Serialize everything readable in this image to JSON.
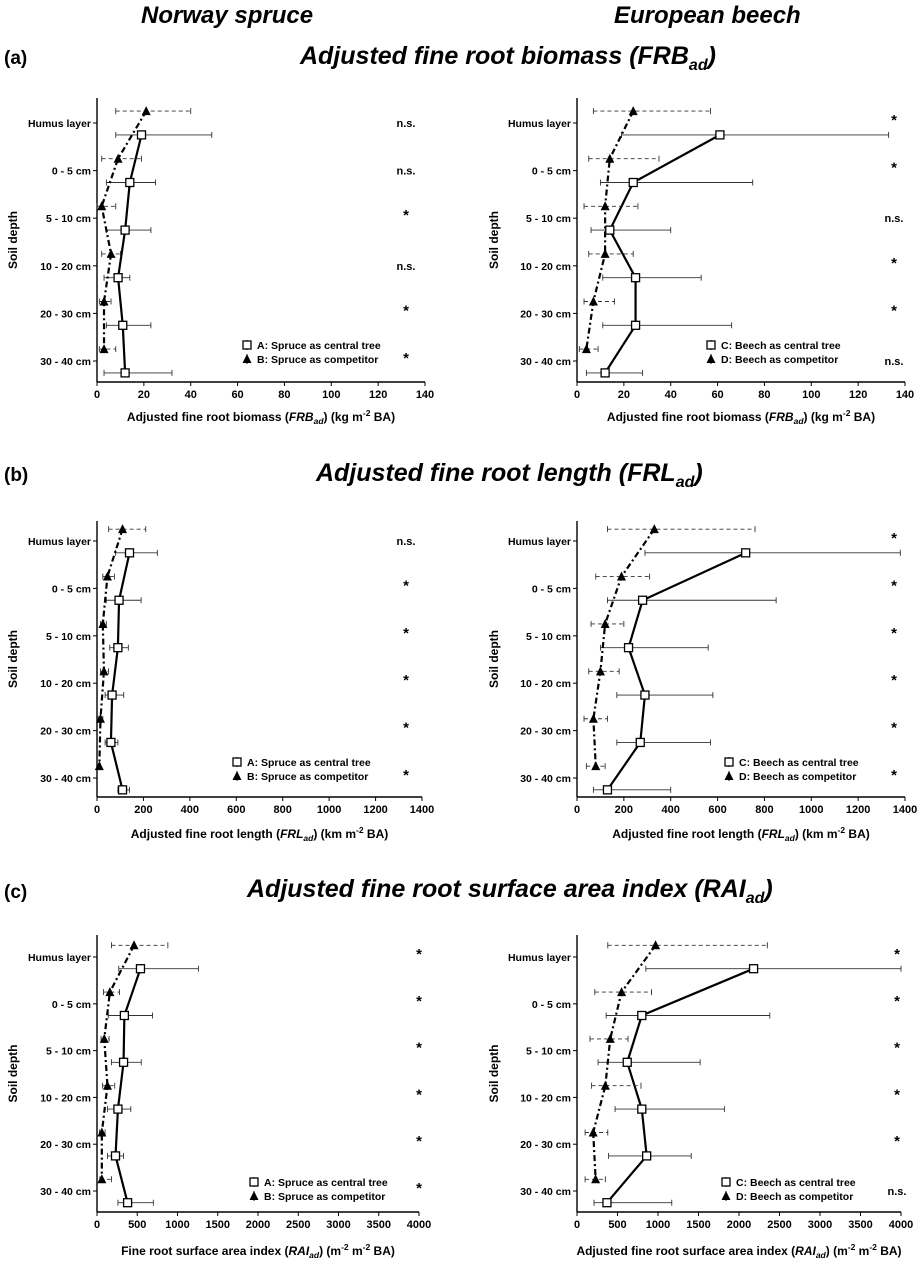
{
  "columns": {
    "left": "Norway spruce",
    "right": "European beech"
  },
  "sections": [
    {
      "tag": "(a)",
      "title": "Adjusted fine root biomass (",
      "title_sym": "FRB",
      "title_sub": "ad",
      "title_end": ")"
    },
    {
      "tag": "(b)",
      "title": "Adjusted fine root length (",
      "title_sym": "FRL",
      "title_sub": "ad",
      "title_end": ")"
    },
    {
      "tag": "(c)",
      "title": "Adjusted fine root surface area index (",
      "title_sym": "RAI",
      "title_sub": "ad",
      "title_end": ")"
    }
  ],
  "chart_data": [
    {
      "type": "line",
      "panel": "a-spruce",
      "xlabel": "Adjusted fine root biomass (FRBad) (kg m-2 BA)",
      "xlabel_parts": [
        "Adjusted fine root biomass (",
        "FRB",
        "ad",
        ") (kg m",
        "-2",
        " BA)"
      ],
      "ylabel": "Soil depth",
      "categories": [
        "Humus layer",
        "0 - 5 cm",
        "5 - 10 cm",
        "10 - 20 cm",
        "20 - 30 cm",
        "30 - 40 cm"
      ],
      "xlim": [
        0,
        140
      ],
      "xticks": [
        0,
        20,
        40,
        60,
        80,
        100,
        120,
        140
      ],
      "significance": [
        "n.s.",
        "n.s.",
        "*",
        "n.s.",
        "*",
        "*"
      ],
      "series": [
        {
          "name": "A: Spruce as central tree",
          "marker": "square",
          "style": "solid",
          "values": [
            19,
            14,
            12,
            9,
            11,
            12
          ],
          "err_low": [
            11,
            10,
            8,
            6,
            7,
            9
          ],
          "err_high": [
            30,
            11,
            11,
            5,
            12,
            20
          ]
        },
        {
          "name": "B: Spruce as competitor",
          "marker": "triangle",
          "style": "dashed",
          "values": [
            21,
            9,
            2,
            6,
            3,
            3
          ],
          "err_low": [
            13,
            7,
            2,
            4,
            2,
            2
          ],
          "err_high": [
            19,
            10,
            6,
            4,
            3,
            5
          ]
        }
      ]
    },
    {
      "type": "line",
      "panel": "a-beech",
      "xlabel": "Adjusted fine root biomass (FRBad) (kg m-2 BA)",
      "xlabel_parts": [
        "Adjusted fine root biomass (",
        "FRB",
        "ad",
        ") (kg m",
        "-2",
        " BA)"
      ],
      "ylabel": "Soil depth",
      "categories": [
        "Humus layer",
        "0 - 5 cm",
        "5 - 10 cm",
        "10 - 20 cm",
        "20 - 30 cm",
        "30 - 40 cm"
      ],
      "xlim": [
        0,
        140
      ],
      "xticks": [
        0,
        20,
        40,
        60,
        80,
        100,
        120,
        140
      ],
      "significance": [
        "*",
        "*",
        "n.s.",
        "*",
        "*",
        "n.s."
      ],
      "series": [
        {
          "name": "C: Beech as central tree",
          "marker": "square",
          "style": "solid",
          "values": [
            61,
            24,
            14,
            25,
            25,
            12
          ],
          "err_low": [
            42,
            14,
            8,
            14,
            14,
            8
          ],
          "err_high": [
            72,
            51,
            26,
            28,
            41,
            16
          ]
        },
        {
          "name": "D: Beech as competitor",
          "marker": "triangle",
          "style": "dashed",
          "values": [
            24,
            14,
            12,
            12,
            7,
            4
          ],
          "err_low": [
            17,
            9,
            9,
            7,
            4,
            3
          ],
          "err_high": [
            33,
            21,
            14,
            12,
            9,
            5
          ]
        }
      ]
    },
    {
      "type": "line",
      "panel": "b-spruce",
      "xlabel": "Adjusted fine root length (FRLad) (km m-2 BA)",
      "xlabel_parts": [
        "Adjusted fine root length (",
        "FRL",
        "ad",
        ") (km m",
        "-2",
        " BA)"
      ],
      "ylabel": "Soil depth",
      "categories": [
        "Humus layer",
        "0 - 5 cm",
        "5 - 10 cm",
        "10 - 20 cm",
        "20 - 30 cm",
        "30 - 40 cm"
      ],
      "xlim": [
        0,
        1400
      ],
      "xticks": [
        0,
        200,
        400,
        600,
        800,
        1000,
        1200,
        1400
      ],
      "significance": [
        "n.s.",
        "*",
        "*",
        "*",
        "*",
        "*"
      ],
      "series": [
        {
          "name": "A: Spruce as central tree",
          "marker": "square",
          "style": "solid",
          "values": [
            140,
            95,
            90,
            65,
            60,
            110
          ],
          "err_low": [
            60,
            55,
            35,
            30,
            25,
            20
          ],
          "err_high": [
            120,
            95,
            45,
            50,
            30,
            30
          ]
        },
        {
          "name": "B: Spruce as competitor",
          "marker": "triangle",
          "style": "dashed",
          "values": [
            110,
            45,
            25,
            30,
            15,
            10
          ],
          "err_low": [
            60,
            20,
            10,
            15,
            10,
            8
          ],
          "err_high": [
            100,
            30,
            15,
            20,
            10,
            5
          ]
        }
      ]
    },
    {
      "type": "line",
      "panel": "b-beech",
      "xlabel": "Adjusted fine root length (FRLad) (km m-2 BA)",
      "xlabel_parts": [
        "Adjusted fine root length (",
        "FRL",
        "ad",
        ") (km m",
        "-2",
        " BA)"
      ],
      "ylabel": "Soil depth",
      "categories": [
        "Humus layer",
        "0 - 5 cm",
        "5 - 10 cm",
        "10 - 20 cm",
        "20 - 30 cm",
        "30 - 40 cm"
      ],
      "xlim": [
        0,
        1400
      ],
      "xticks": [
        0,
        200,
        400,
        600,
        800,
        1000,
        1200,
        1400
      ],
      "significance": [
        "*",
        "*",
        "*",
        "*",
        "*",
        "*"
      ],
      "series": [
        {
          "name": "C: Beech as central tree",
          "marker": "square",
          "style": "solid",
          "values": [
            720,
            280,
            220,
            290,
            270,
            130
          ],
          "err_low": [
            430,
            150,
            120,
            120,
            100,
            60
          ],
          "err_high": [
            660,
            570,
            340,
            290,
            300,
            270
          ]
        },
        {
          "name": "D: Beech as competitor",
          "marker": "triangle",
          "style": "dashed",
          "values": [
            330,
            190,
            120,
            100,
            70,
            80
          ],
          "err_low": [
            200,
            110,
            60,
            50,
            40,
            40
          ],
          "err_high": [
            430,
            120,
            80,
            80,
            60,
            40
          ]
        }
      ]
    },
    {
      "type": "line",
      "panel": "c-spruce",
      "xlabel": "Fine root surface area index (RAIad) (m-2 m-2 BA)",
      "xlabel_parts": [
        "Fine root surface area index (",
        "RAI",
        "ad",
        ") (m",
        "-2",
        " m",
        "-2",
        " BA)"
      ],
      "ylabel": "Soil depth",
      "categories": [
        "Humus layer",
        "0 - 5 cm",
        "5 - 10 cm",
        "10 - 20 cm",
        "20 - 30 cm",
        "30 - 40 cm"
      ],
      "xlim": [
        0,
        4000
      ],
      "xticks": [
        0,
        500,
        1000,
        1500,
        2000,
        2500,
        3000,
        3500,
        4000
      ],
      "significance": [
        "*",
        "*",
        "*",
        "*",
        "*",
        "*"
      ],
      "series": [
        {
          "name": "A: Spruce as central tree",
          "marker": "square",
          "style": "solid",
          "values": [
            540,
            340,
            330,
            260,
            230,
            380
          ],
          "err_low": [
            270,
            200,
            150,
            130,
            100,
            120
          ],
          "err_high": [
            720,
            350,
            220,
            160,
            100,
            320
          ]
        },
        {
          "name": "B: Spruce as competitor",
          "marker": "triangle",
          "style": "dashed",
          "values": [
            460,
            160,
            90,
            130,
            60,
            60
          ],
          "err_low": [
            280,
            80,
            40,
            60,
            30,
            25
          ],
          "err_high": [
            420,
            120,
            60,
            90,
            40,
            120
          ]
        }
      ]
    },
    {
      "type": "line",
      "panel": "c-beech",
      "xlabel": "Adjusted fine root surface area index (RAIad) (m-2 m-2 BA)",
      "xlabel_parts": [
        "Adjusted fine root surface area index (",
        "RAI",
        "ad",
        ") (m",
        "-2",
        " m",
        "-2",
        " BA)"
      ],
      "ylabel": "Soil depth",
      "categories": [
        "Humus layer",
        "0 - 5 cm",
        "5 - 10 cm",
        "10 - 20 cm",
        "20 - 30 cm",
        "30 - 40 cm"
      ],
      "xlim": [
        0,
        4000
      ],
      "xticks": [
        0,
        500,
        1000,
        1500,
        2000,
        2500,
        3000,
        3500,
        4000
      ],
      "significance": [
        "*",
        "*",
        "*",
        "*",
        "*",
        "n.s."
      ],
      "series": [
        {
          "name": "C: Beech as central tree",
          "marker": "square",
          "style": "solid",
          "values": [
            2180,
            800,
            620,
            800,
            860,
            370
          ],
          "err_low": [
            1330,
            440,
            360,
            330,
            470,
            160
          ],
          "err_high": [
            1820,
            1580,
            900,
            1020,
            550,
            800
          ]
        },
        {
          "name": "D: Beech as competitor",
          "marker": "triangle",
          "style": "dashed",
          "values": [
            970,
            550,
            410,
            350,
            200,
            230
          ],
          "err_low": [
            590,
            330,
            250,
            170,
            100,
            130
          ],
          "err_high": [
            1380,
            370,
            220,
            440,
            180,
            120
          ]
        }
      ]
    }
  ]
}
